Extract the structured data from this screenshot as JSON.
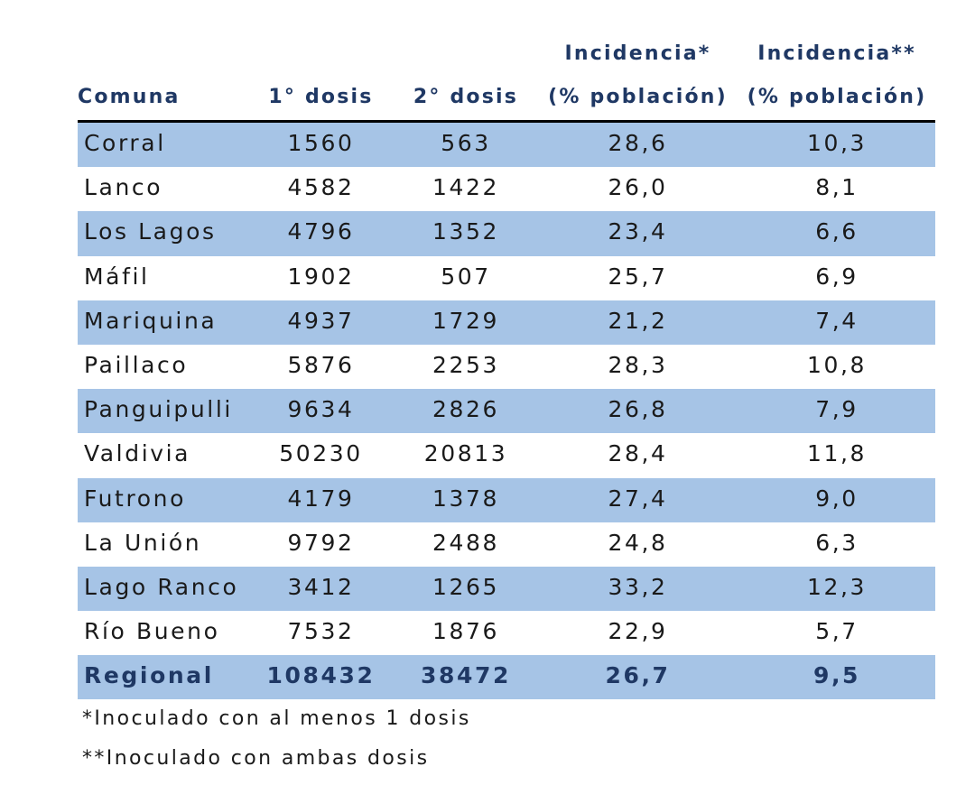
{
  "chart_data": {
    "type": "table",
    "columns": [
      {
        "line1": "",
        "line2": "Comuna"
      },
      {
        "line1": "",
        "line2": "1° dosis"
      },
      {
        "line1": "",
        "line2": "2° dosis"
      },
      {
        "line1": "Incidencia*",
        "line2": "(% población)"
      },
      {
        "line1": "Incidencia**",
        "line2": "(% población)"
      }
    ],
    "rows": [
      [
        "Corral",
        "1560",
        "563",
        "28,6",
        "10,3"
      ],
      [
        "Lanco",
        "4582",
        "1422",
        "26,0",
        "8,1"
      ],
      [
        "Los Lagos",
        "4796",
        "1352",
        "23,4",
        "6,6"
      ],
      [
        "Máfil",
        "1902",
        "507",
        "25,7",
        "6,9"
      ],
      [
        "Mariquina",
        "4937",
        "1729",
        "21,2",
        "7,4"
      ],
      [
        "Paillaco",
        "5876",
        "2253",
        "28,3",
        "10,8"
      ],
      [
        "Panguipulli",
        "9634",
        "2826",
        "26,8",
        "7,9"
      ],
      [
        "Valdivia",
        "50230",
        "20813",
        "28,4",
        "11,8"
      ],
      [
        "Futrono",
        "4179",
        "1378",
        "27,4",
        "9,0"
      ],
      [
        "La Unión",
        "9792",
        "2488",
        "24,8",
        "6,3"
      ],
      [
        "Lago Ranco",
        "3412",
        "1265",
        "33,2",
        "12,3"
      ],
      [
        "Río Bueno",
        "7532",
        "1876",
        "22,9",
        "5,7"
      ]
    ],
    "total_row": [
      "Regional",
      "108432",
      "38472",
      "26,7",
      "9,5"
    ],
    "band_color": "#a6c4e6",
    "header_color": "#1f3864"
  },
  "footnotes": [
    "*Inoculado con al menos 1 dosis",
    "**Inoculado con ambas dosis"
  ]
}
